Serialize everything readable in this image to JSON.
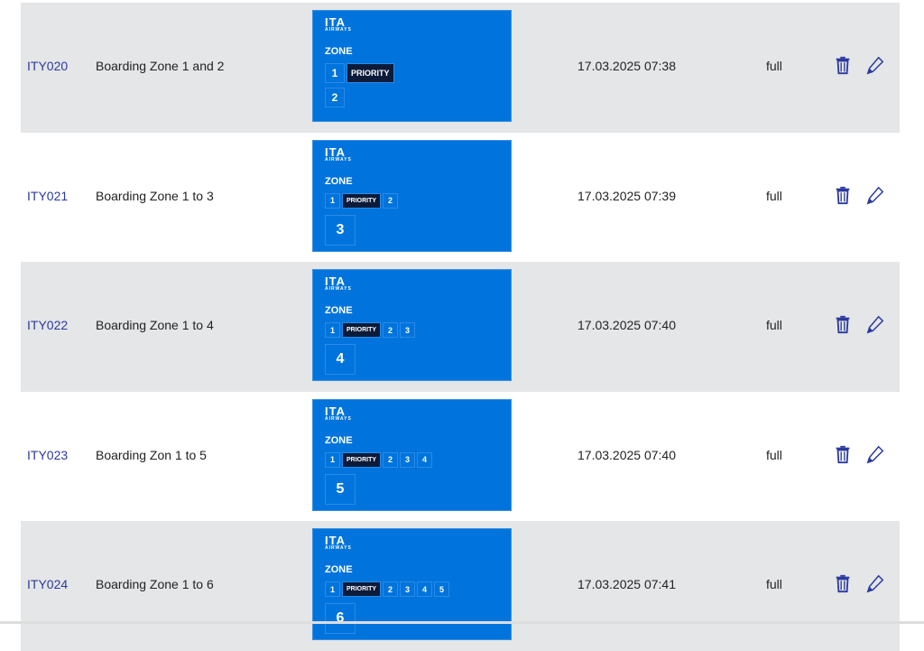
{
  "colors": {
    "link": "#2b3a9e",
    "banner": "#0074dc",
    "row_alt": "#e4e6e7",
    "icon": "#2b3a9e"
  },
  "rows": [
    {
      "code": "ITY020",
      "name": "Boarding Zone 1 and 2",
      "banner": {
        "logo": "ITA",
        "logo_sub": "AIRWAYS",
        "zone_label": "ZONE",
        "zones": [
          "1",
          "2"
        ],
        "priority": "PRIORITY",
        "last": "2"
      },
      "date": "17.03.2025 07:38",
      "type": "full"
    },
    {
      "code": "ITY021",
      "name": "Boarding Zone 1 to 3",
      "banner": {
        "logo": "ITA",
        "logo_sub": "AIRWAYS",
        "zone_label": "ZONE",
        "zones": [
          "1",
          "2"
        ],
        "priority": "PRIORITY",
        "last": "3"
      },
      "date": "17.03.2025 07:39",
      "type": "full"
    },
    {
      "code": "ITY022",
      "name": "Boarding Zone 1 to 4",
      "banner": {
        "logo": "ITA",
        "logo_sub": "AIRWAYS",
        "zone_label": "ZONE",
        "zones": [
          "1",
          "2",
          "3"
        ],
        "priority": "PRIORITY",
        "last": "4"
      },
      "date": "17.03.2025 07:40",
      "type": "full"
    },
    {
      "code": "ITY023",
      "name": "Boarding Zon 1 to 5",
      "banner": {
        "logo": "ITA",
        "logo_sub": "AIRWAYS",
        "zone_label": "ZONE",
        "zones": [
          "1",
          "2",
          "3",
          "4"
        ],
        "priority": "PRIORITY",
        "last": "5"
      },
      "date": "17.03.2025 07:40",
      "type": "full"
    },
    {
      "code": "ITY024",
      "name": "Boarding Zone 1 to 6",
      "banner": {
        "logo": "ITA",
        "logo_sub": "AIRWAYS",
        "zone_label": "ZONE",
        "zones": [
          "1",
          "2",
          "3",
          "4",
          "5"
        ],
        "priority": "PRIORITY",
        "last": "6"
      },
      "date": "17.03.2025 07:41",
      "type": "full"
    }
  ],
  "icons": {
    "delete": "trash-icon",
    "edit": "pencil-icon"
  }
}
